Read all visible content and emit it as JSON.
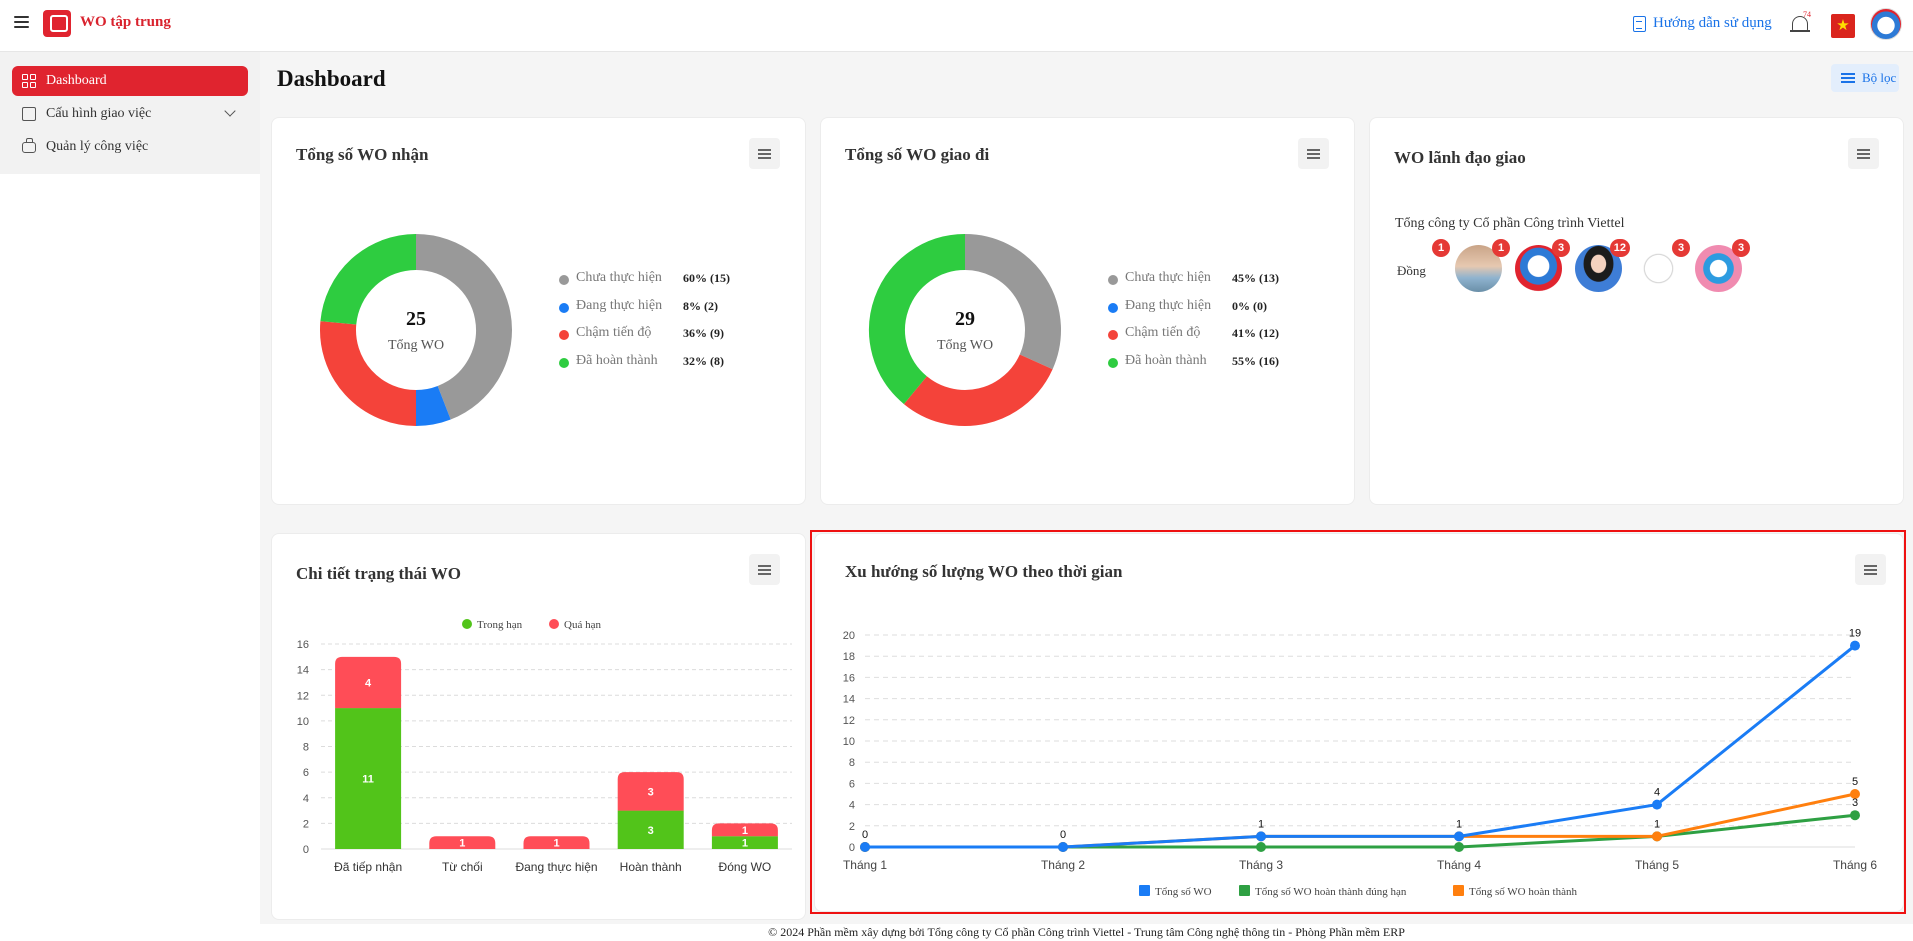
{
  "app": {
    "title": "WO tập trung"
  },
  "header": {
    "guide_label": "Hướng dẫn sử dụng",
    "notification_count": "74"
  },
  "sidebar": {
    "items": [
      {
        "label": "Dashboard",
        "active": true
      },
      {
        "label": "Cấu hình giao việc"
      },
      {
        "label": "Quản lý công việc"
      }
    ]
  },
  "page": {
    "title": "Dashboard",
    "filter_label": "Bộ lọc"
  },
  "colors": {
    "accent": "#e0242f",
    "gray": "#999999",
    "blue": "#1a73e8",
    "red": "#f44336",
    "green": "#2ecc40"
  },
  "received": {
    "title": "Tổng số WO nhận",
    "total": "25",
    "total_label": "Tổng WO",
    "legend": [
      {
        "label": "Chưa thực hiện",
        "pct": "60% (15)",
        "color": "#999999",
        "value": 15
      },
      {
        "label": "Đang thực hiện",
        "pct": "8% (2)",
        "color": "#1a7cf5",
        "value": 2
      },
      {
        "label": "Chậm tiến độ",
        "pct": "36% (9)",
        "color": "#f4433a",
        "value": 9
      },
      {
        "label": "Đã hoàn thành",
        "pct": "32% (8)",
        "color": "#2ecc40",
        "value": 8
      }
    ]
  },
  "sent": {
    "title": "Tổng số WO giao đi",
    "total": "29",
    "total_label": "Tổng WO",
    "legend": [
      {
        "label": "Chưa thực hiện",
        "pct": "45% (13)",
        "color": "#999999",
        "value": 13
      },
      {
        "label": "Đang thực hiện",
        "pct": "0% (0)",
        "color": "#1a7cf5",
        "value": 0
      },
      {
        "label": "Chậm tiến độ",
        "pct": "41% (12)",
        "color": "#f4433a",
        "value": 12
      },
      {
        "label": "Đã hoàn thành",
        "pct": "55% (16)",
        "color": "#2ecc40",
        "value": 16
      }
    ]
  },
  "leaders": {
    "title": "WO lãnh đạo giao",
    "org": "Tổng công ty Cổ phần Công trình Viettel",
    "people": [
      {
        "count": "1",
        "alt": "Đồng"
      },
      {
        "count": "1"
      },
      {
        "count": "3"
      },
      {
        "count": "12"
      },
      {
        "count": "3"
      },
      {
        "count": "3"
      }
    ]
  },
  "chart_data": [
    {
      "type": "bar",
      "title": "Chi tiết trạng thái WO",
      "categories": [
        "Đã tiếp nhận",
        "Từ chối",
        "Đang thực hiện",
        "Hoàn thành",
        "Đóng WO"
      ],
      "series": [
        {
          "name": "Trong hạn",
          "color": "#52c41a",
          "values": [
            11,
            0,
            0,
            3,
            1
          ]
        },
        {
          "name": "Quá hạn",
          "color": "#ff4d57",
          "values": [
            4,
            1,
            1,
            3,
            1
          ]
        }
      ],
      "ylim": [
        0,
        16
      ],
      "yticks": [
        0,
        2,
        4,
        6,
        8,
        10,
        12,
        14,
        16
      ],
      "stacked": true,
      "legend": "top",
      "grid": true
    },
    {
      "type": "line",
      "title": "Xu hướng số lượng WO theo thời gian",
      "categories": [
        "Tháng 1",
        "Tháng 2",
        "Tháng 3",
        "Tháng 4",
        "Tháng 5",
        "Tháng 6"
      ],
      "series": [
        {
          "name": "Tổng số WO",
          "color": "#1a7cf5",
          "values": [
            0,
            0,
            1,
            1,
            4,
            19
          ]
        },
        {
          "name": "Tổng số WO hoàn thành đúng hạn",
          "color": "#2ea043",
          "values": [
            0,
            0,
            0,
            0,
            1,
            3
          ]
        },
        {
          "name": "Tổng số WO hoàn thành",
          "color": "#ff7f0e",
          "values": [
            0,
            0,
            1,
            1,
            1,
            5
          ]
        }
      ],
      "ylim": [
        0,
        20
      ],
      "yticks": [
        0,
        2,
        4,
        6,
        8,
        10,
        12,
        14,
        16,
        18,
        20
      ],
      "legend": "bottom",
      "grid": true
    }
  ],
  "footer": {
    "text": "© 2024 Phần mềm xây dựng bởi Tổng công ty Cổ phần Công trình Viettel - Trung tâm Công nghệ thông tin - Phòng Phần mềm ERP"
  }
}
